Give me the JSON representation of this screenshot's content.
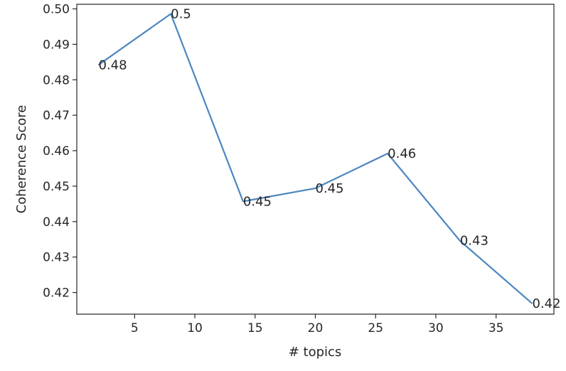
{
  "chart_data": {
    "type": "line",
    "title": "",
    "xlabel": "# topics",
    "ylabel": "Coherence Score",
    "x": [
      2,
      8,
      14,
      20,
      26,
      32,
      38
    ],
    "series": [
      {
        "values": [
          0.4842,
          0.4986,
          0.4457,
          0.4494,
          0.4592,
          0.4346,
          0.4169
        ],
        "labels": [
          "0.48",
          "0.5",
          "0.45",
          "0.45",
          "0.46",
          "0.43",
          "0.42"
        ]
      }
    ],
    "xlim": [
      0.2,
      39.8
    ],
    "ylim": [
      0.4139,
      0.5013
    ],
    "xticks": [
      5,
      10,
      15,
      20,
      25,
      30,
      35
    ],
    "xtick_labels": [
      "5",
      "10",
      "15",
      "20",
      "25",
      "30",
      "35"
    ],
    "yticks": [
      0.42,
      0.43,
      0.44,
      0.45,
      0.46,
      0.47,
      0.48,
      0.49,
      0.5
    ],
    "ytick_labels": [
      "0.42",
      "0.43",
      "0.44",
      "0.45",
      "0.46",
      "0.47",
      "0.48",
      "0.49",
      "0.50"
    ],
    "grid": false,
    "line_color": "#4c86c0"
  }
}
